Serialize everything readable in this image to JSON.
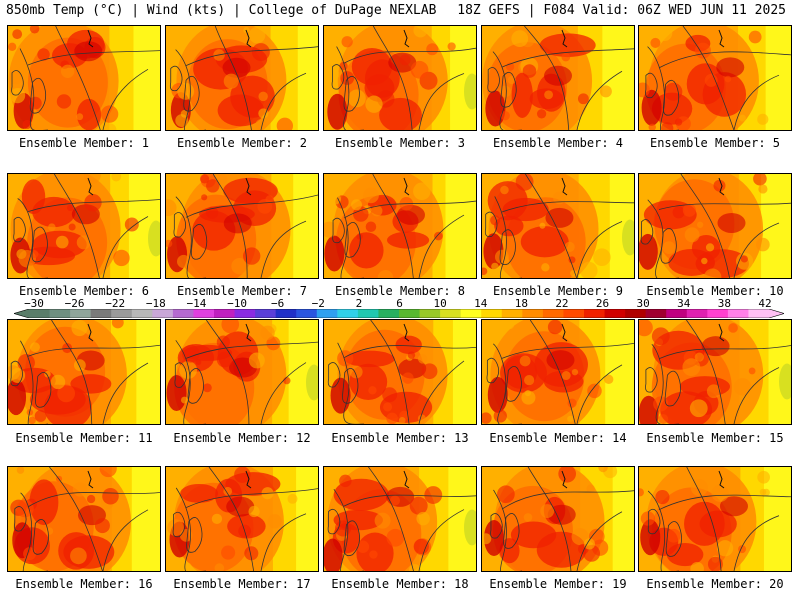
{
  "header": {
    "left_title": "850mb Temp (°C) | Wind (kts) | College of DuPage NEXLAB",
    "right_title": "18Z GEFS | F084 Valid: 06Z WED JUN 11 2025"
  },
  "colorbar": {
    "tick_labels": [
      "−30",
      "−26",
      "−22",
      "−18",
      "−14",
      "−10",
      "−6",
      "−2",
      "2",
      "6",
      "10",
      "14",
      "18",
      "22",
      "26",
      "30",
      "34",
      "38",
      "42"
    ],
    "colors": [
      "#5a7d6a",
      "#6e8f80",
      "#8fa59a",
      "#7a7a7a",
      "#9a9a9a",
      "#b8b8b8",
      "#c9a7d8",
      "#b56ad0",
      "#e040e0",
      "#c020c0",
      "#8a2be2",
      "#5a3fd8",
      "#2030c8",
      "#2a55e0",
      "#2fa0f0",
      "#30d0e8",
      "#20c8b0",
      "#28b060",
      "#58b830",
      "#98c828",
      "#d8e020",
      "#ffff20",
      "#ffd800",
      "#ffb000",
      "#ff8c00",
      "#ff6a00",
      "#ff4a00",
      "#f02000",
      "#d00000",
      "#b00000",
      "#a00030",
      "#c00080",
      "#e020b0",
      "#ff40d0",
      "#ff80e8",
      "#ffc0f4"
    ]
  },
  "panels": [
    {
      "label": "Ensemble Member: 1",
      "variant": 1
    },
    {
      "label": "Ensemble Member: 2",
      "variant": 2
    },
    {
      "label": "Ensemble Member: 3",
      "variant": 3
    },
    {
      "label": "Ensemble Member: 4",
      "variant": 4
    },
    {
      "label": "Ensemble Member: 5",
      "variant": 5
    },
    {
      "label": "Ensemble Member: 6",
      "variant": 6
    },
    {
      "label": "Ensemble Member: 7",
      "variant": 7
    },
    {
      "label": "Ensemble Member: 8",
      "variant": 8
    },
    {
      "label": "Ensemble Member: 9",
      "variant": 9
    },
    {
      "label": "Ensemble Member: 10",
      "variant": 10
    },
    {
      "label": "Ensemble Member: 11",
      "variant": 11
    },
    {
      "label": "Ensemble Member: 12",
      "variant": 12
    },
    {
      "label": "Ensemble Member: 13",
      "variant": 13
    },
    {
      "label": "Ensemble Member: 14",
      "variant": 14
    },
    {
      "label": "Ensemble Member: 15",
      "variant": 15
    },
    {
      "label": "Ensemble Member: 16",
      "variant": 16
    },
    {
      "label": "Ensemble Member: 17",
      "variant": 17
    },
    {
      "label": "Ensemble Member: 18",
      "variant": 18
    },
    {
      "label": "Ensemble Member: 19",
      "variant": 19
    },
    {
      "label": "Ensemble Member: 20",
      "variant": 20
    }
  ]
}
